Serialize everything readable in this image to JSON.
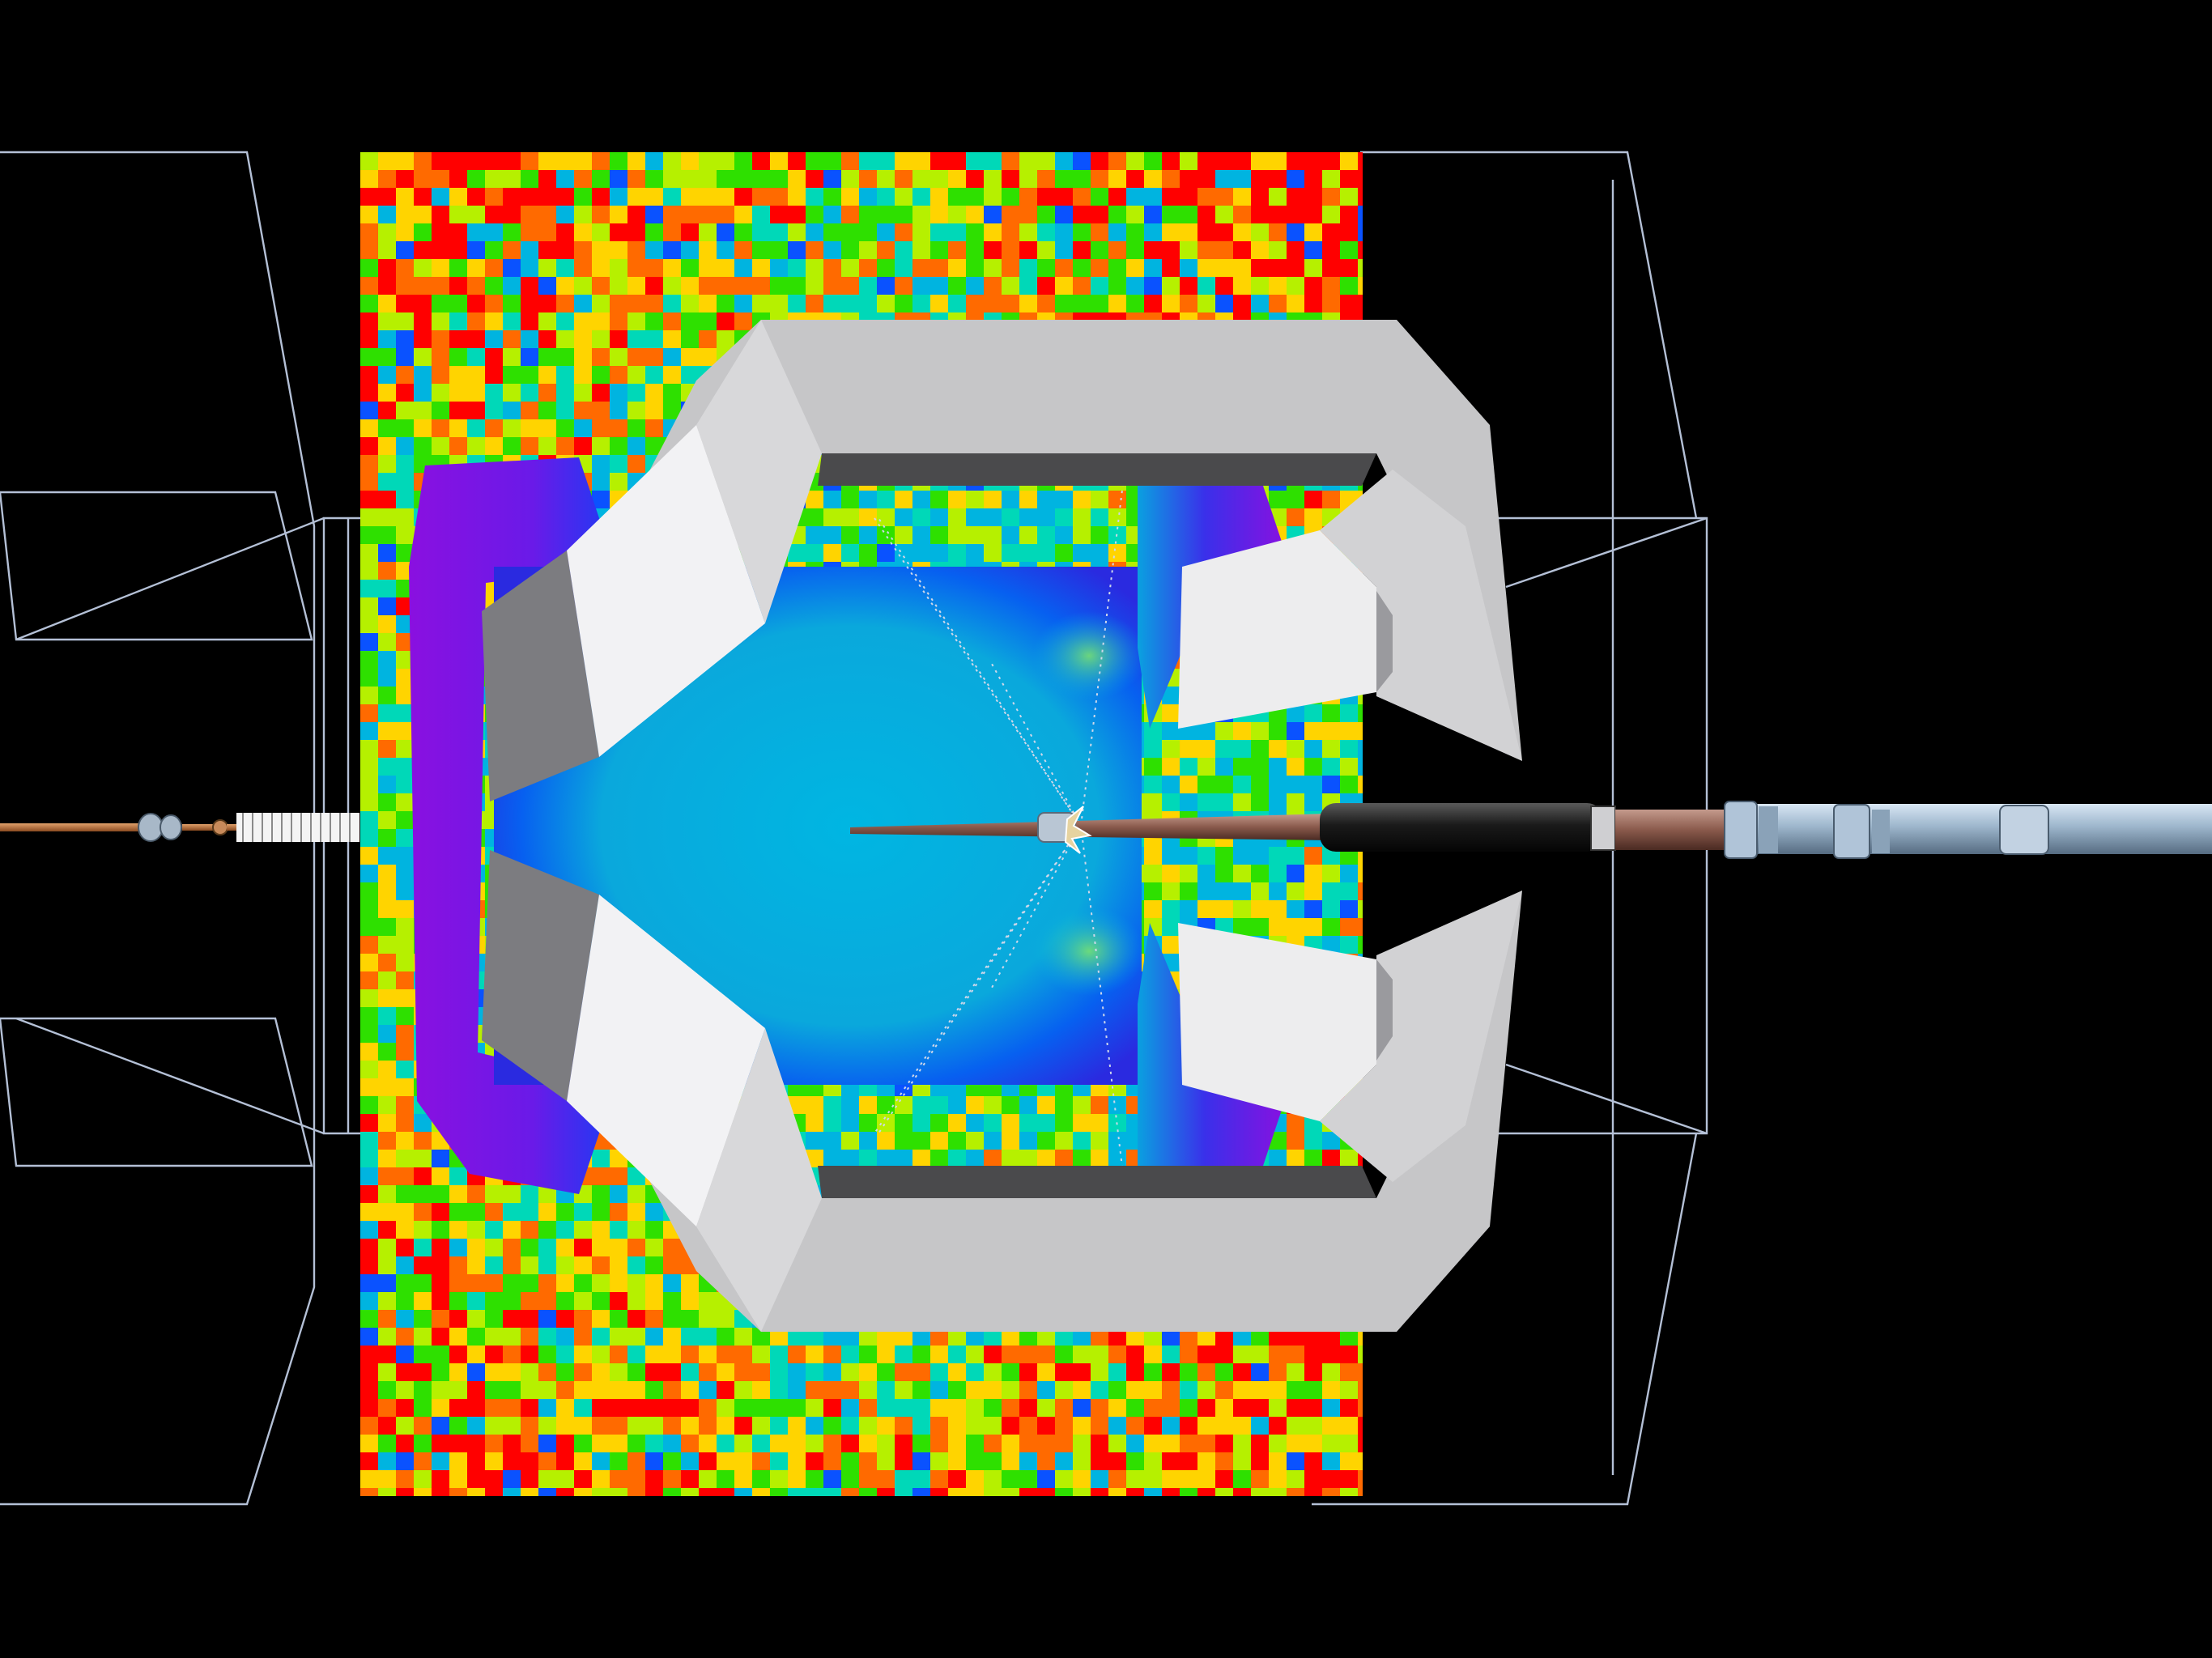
{
  "scene": {
    "background": "#000000",
    "field_palette": [
      "#ff0000",
      "#ff6a00",
      "#ffd400",
      "#b6f000",
      "#2ee000",
      "#00d8b8",
      "#00b4e0",
      "#0a52ff",
      "#4a18e8",
      "#9a00e0"
    ],
    "metal_colors": {
      "face_light": "#f4f4f6",
      "face_mid": "#c6c6c8",
      "face_dark": "#7c7c80",
      "face_shadow": "#4a4a4c"
    },
    "wireframe_color": "#b4c0d6",
    "icons": [
      "yoke-magnet-icon",
      "electrode-probe-icon",
      "feed-cable-icon",
      "connector-icon",
      "field-map-icon"
    ]
  }
}
